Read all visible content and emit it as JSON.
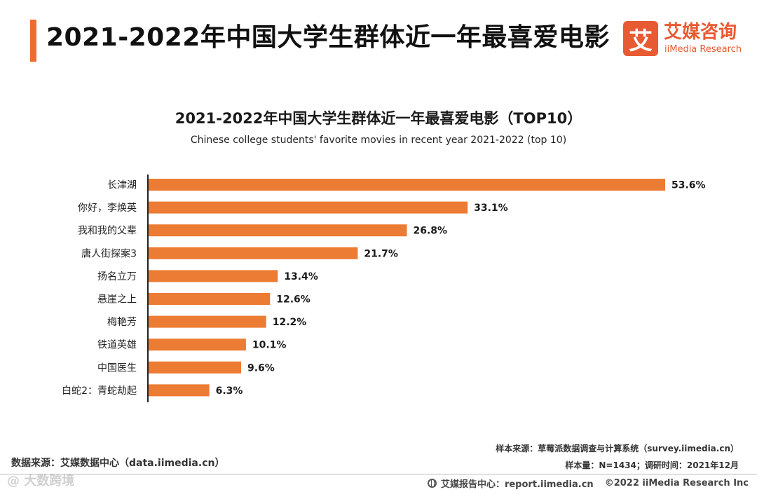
{
  "header": {
    "title": "2021-2022年中国大学生群体近一年最喜爱电影",
    "accent_color": "#ec6d34"
  },
  "logo": {
    "mark": "艾",
    "name_cn": "艾媒咨询",
    "name_en": "iiMedia Research",
    "color": "#e85a32"
  },
  "chart_data": {
    "type": "bar",
    "orientation": "horizontal",
    "title": "2021-2022年中国大学生群体近一年最喜爱电影（TOP10）",
    "subtitle": "Chinese college students' favorite movies in recent year 2021-2022 (top 10)",
    "categories": [
      "长津湖",
      "你好，李焕英",
      "我和我的父辈",
      "唐人街探案3",
      "扬名立万",
      "悬崖之上",
      "梅艳芳",
      "铁道英雄",
      "中国医生",
      "白蛇2：青蛇劫起"
    ],
    "values": [
      53.6,
      33.1,
      26.8,
      21.7,
      13.4,
      12.6,
      12.2,
      10.1,
      9.6,
      6.3
    ],
    "value_labels": [
      "53.6%",
      "33.1%",
      "26.8%",
      "21.7%",
      "13.4%",
      "12.6%",
      "12.2%",
      "10.1%",
      "9.6%",
      "6.3%"
    ],
    "unit": "%",
    "xlim": [
      0,
      53.6
    ],
    "bar_color": "#ec7b33",
    "grid": false,
    "legend": "none"
  },
  "source": {
    "data_source": "数据来源：艾媒数据中心（data.iimedia.cn）",
    "sample_source": "样本来源：草莓派数据调查与计算系统（survey.iimedia.cn）",
    "sample_info": "样本量：N=1434；调研时间：2021年12月"
  },
  "footer": {
    "report_center": "艾媒报告中心：report.iimedia.cn",
    "copyright": "©2022  iiMedia Research  Inc",
    "watermark": "@ 大数跨境"
  }
}
